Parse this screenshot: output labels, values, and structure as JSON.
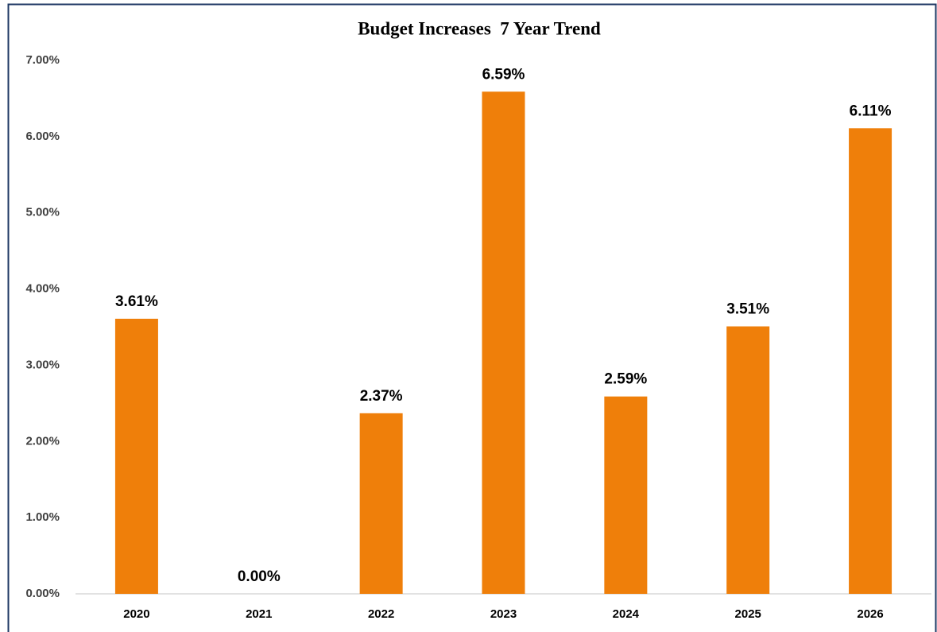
{
  "chart_data": {
    "type": "bar",
    "title": "Budget Increases  7 Year Trend",
    "categories": [
      "2020",
      "2021",
      "2022",
      "2023",
      "2024",
      "2025",
      "2026"
    ],
    "values": [
      3.61,
      0,
      2.37,
      6.59,
      2.59,
      3.51,
      6.11
    ],
    "value_labels": [
      "3.61%",
      "0.00%",
      "2.37%",
      "6.59%",
      "2.59%",
      "3.51%",
      "6.11%"
    ],
    "color": "#ef7f0a",
    "ylim": [
      0,
      7
    ],
    "yticks": [
      {
        "value": 0,
        "label": "0.00%"
      },
      {
        "value": 1,
        "label": "1.00%"
      },
      {
        "value": 2,
        "label": "2.00%"
      },
      {
        "value": 3,
        "label": "3.00%"
      },
      {
        "value": 4,
        "label": "4.00%"
      },
      {
        "value": 5,
        "label": "5.00%"
      },
      {
        "value": 6,
        "label": "6.00%"
      },
      {
        "value": 7,
        "label": "7.00%"
      }
    ],
    "grid": false
  }
}
